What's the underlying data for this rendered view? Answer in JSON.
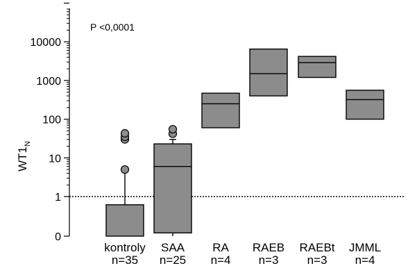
{
  "chart_data": {
    "type": "box",
    "title": "",
    "xlabel": "",
    "ylabel": "WT1",
    "ylabel_subscript": "N",
    "y_scale": "log",
    "ylim": [
      0,
      100000
    ],
    "y_ticks": [
      "0",
      "1",
      "10",
      "100",
      "1000",
      "10000"
    ],
    "annotation": "P <0,0001",
    "reference_line": {
      "y": 1,
      "style": "dotted"
    },
    "box_color": "#8c8c8c",
    "categories": [
      {
        "name": "kontroly",
        "n_label": "n=35"
      },
      {
        "name": "SAA",
        "n_label": "n=25"
      },
      {
        "name": "RA",
        "n_label": "n=4"
      },
      {
        "name": "RAEB",
        "n_label": "n=3"
      },
      {
        "name": "RAEBt",
        "n_label": "n=3"
      },
      {
        "name": "JMML",
        "n_label": "n=4"
      }
    ],
    "boxes": [
      {
        "q1": 0,
        "median": 0,
        "q3": 0.75,
        "whisker_low": 0,
        "whisker_high": 5,
        "outliers": [
          5,
          30,
          35,
          43
        ]
      },
      {
        "q1": 0.28,
        "median": 6,
        "q3": 23,
        "whisker_low": 0,
        "whisker_high": 30,
        "outliers": [
          42,
          55
        ]
      },
      {
        "q1": 60,
        "median": 250,
        "q3": 470,
        "whisker_low": null,
        "whisker_high": null,
        "outliers": []
      },
      {
        "q1": 400,
        "median": 1500,
        "q3": 6500,
        "whisker_low": null,
        "whisker_high": null,
        "outliers": []
      },
      {
        "q1": 1200,
        "median": 2900,
        "q3": 4200,
        "whisker_low": null,
        "whisker_high": null,
        "outliers": []
      },
      {
        "q1": 100,
        "median": 320,
        "q3": 560,
        "whisker_low": null,
        "whisker_high": null,
        "outliers": []
      }
    ]
  }
}
